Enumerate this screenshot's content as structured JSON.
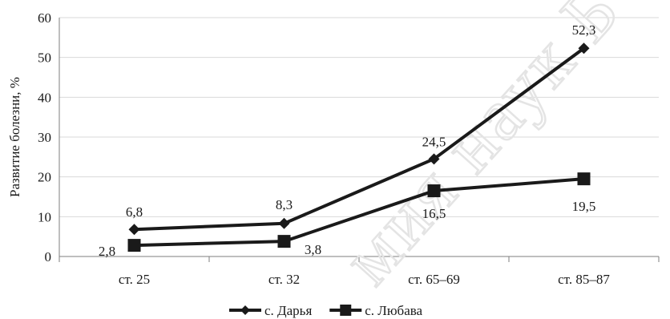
{
  "chart_data": {
    "type": "line",
    "categories": [
      "ст. 25",
      "ст. 32",
      "ст. 65–69",
      "ст. 85–87"
    ],
    "series": [
      {
        "name": "с. Дарья",
        "marker": "diamond",
        "values": [
          6.8,
          8.3,
          24.5,
          52.3
        ],
        "labels": [
          "6,8",
          "8,3",
          "24,5",
          "52,3"
        ]
      },
      {
        "name": "с. Любава",
        "marker": "square",
        "values": [
          2.8,
          3.8,
          16.5,
          19.5
        ],
        "labels": [
          "2,8",
          "3,8",
          "16,5",
          "19,5"
        ]
      }
    ],
    "ylabel": "Развитие болезни, %",
    "xlabel": "",
    "ylim": [
      0,
      60
    ],
    "yticks": [
      0,
      10,
      20,
      30,
      40,
      50,
      60
    ],
    "grid": true,
    "legend": "bottom",
    "line_color": "#1a1a1a",
    "grid_color": "#d9d9d9"
  },
  "watermark": "мия наук Б"
}
